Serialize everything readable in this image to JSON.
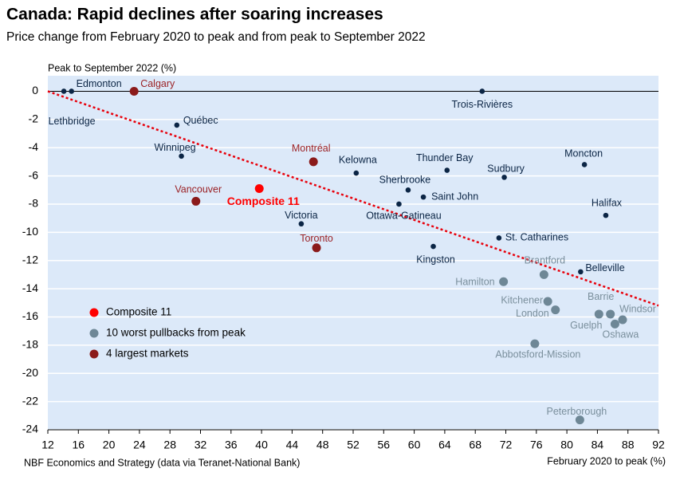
{
  "chart_data": {
    "type": "scatter",
    "title": "Canada: Rapid declines after soaring increases",
    "subtitle": "Price change from February 2020 to peak and from peak to September 2022",
    "y_label": "Peak to September 2022 (%)",
    "x_label": "February 2020 to peak (%)",
    "source": "NBF Economics and Strategy (data via Teranet-National Bank)",
    "xlim": [
      12,
      92
    ],
    "ylim": [
      -24,
      1.1
    ],
    "xticks": [
      12,
      16,
      20,
      24,
      28,
      32,
      36,
      40,
      44,
      48,
      52,
      56,
      60,
      64,
      68,
      72,
      76,
      80,
      84,
      88,
      92
    ],
    "yticks": [
      0,
      -2,
      -4,
      -6,
      -8,
      -10,
      -12,
      -14,
      -16,
      -18,
      -20,
      -22,
      -24
    ],
    "grid": true,
    "legend": "lower-left",
    "trendline": {
      "color": "#e8000b",
      "x": [
        12,
        92
      ],
      "y": [
        0,
        -15.2
      ]
    },
    "series": [
      {
        "color": "#0b2545",
        "labels": [
          "Lethbridge",
          "Edmonton",
          "Trois-Rivières",
          "Québec",
          "Winnipeg",
          "Kelowna",
          "Thunder Bay",
          "Sudbury",
          "Moncton",
          "Sherbrooke",
          "Saint John",
          "Ottawa-Gatineau",
          "Halifax",
          "Victoria",
          "St. Catharines",
          "Kingston",
          "Belleville"
        ],
        "x": [
          14.1,
          15.1,
          68.9,
          28.9,
          29.5,
          52.4,
          64.3,
          71.8,
          82.3,
          59.2,
          61.2,
          58.0,
          85.1,
          45.2,
          71.1,
          62.5,
          81.8
        ],
        "y": [
          0,
          0,
          0,
          -2.4,
          -4.6,
          -5.8,
          -5.6,
          -6.1,
          -5.2,
          -7.0,
          -7.5,
          -8.0,
          -8.8,
          -9.4,
          -10.4,
          -11.0,
          -12.8
        ]
      },
      {
        "name": "Composite 11",
        "color": "#ff0000",
        "labels": [
          "Composite 11"
        ],
        "x": [
          39.7
        ],
        "y": [
          -6.9
        ]
      },
      {
        "name": "10 worst pullbacks from peak",
        "color": "#6e8796",
        "labels": [
          "Brantford",
          "Hamilton",
          "Kitchener",
          "London",
          "Barrie",
          "Windsor",
          "Guelph",
          "Oshawa",
          "Abbotsford-Mission",
          "Peterborough"
        ],
        "x": [
          77.0,
          71.7,
          77.5,
          78.5,
          85.7,
          87.3,
          84.2,
          86.3,
          75.8,
          81.7
        ],
        "y": [
          -13.0,
          -13.5,
          -14.9,
          -15.5,
          -15.8,
          -16.2,
          -15.8,
          -16.5,
          -17.9,
          -23.3
        ]
      },
      {
        "name": "4 largest markets",
        "color": "#8b1a1a",
        "labels": [
          "Calgary",
          "Montréal",
          "Vancouver",
          "Toronto"
        ],
        "x": [
          23.3,
          46.8,
          31.4,
          47.2
        ],
        "y": [
          0,
          -5.0,
          -7.8,
          -11.1
        ]
      }
    ]
  }
}
